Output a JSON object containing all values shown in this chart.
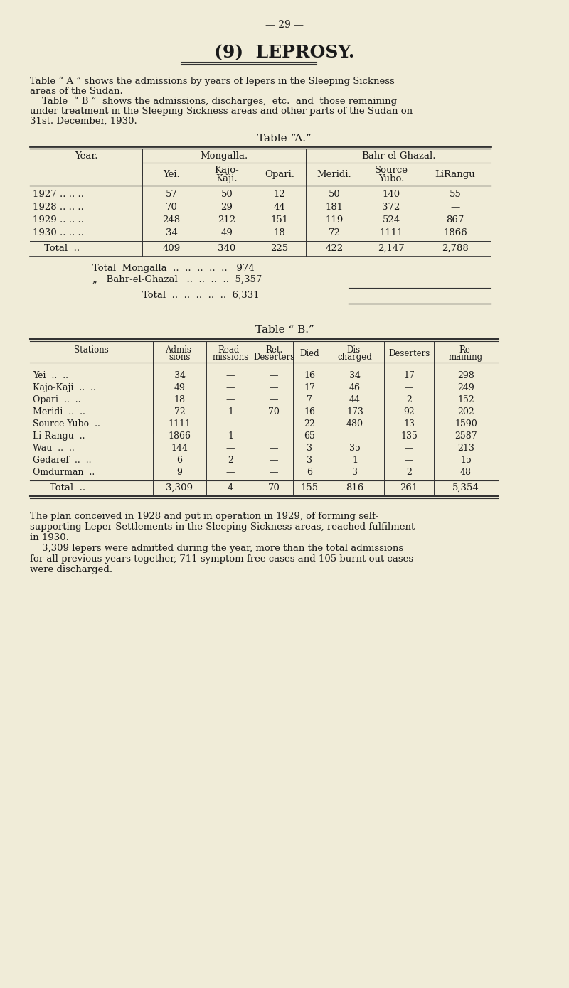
{
  "bg_color": "#f0ecd8",
  "page_number": "— 29 —",
  "title": "(9)  LEPROSY.",
  "intro_text": [
    "Table “ A ” shows the admissions by years of lepers in the Sleeping Sickness",
    "areas of the Sudan.",
    "    Table  “ B ”  shows the admissions, discharges,  etc.  and  those remaining",
    "under treatment in the Sleeping Sickness areas and other parts of the Sudan on",
    "31st. December, 1930."
  ],
  "table_a_title": "Table “A.”",
  "table_a_header_row1": [
    "Year.",
    "Mongalla.",
    "",
    "",
    "Bahr-el-Ghazal.",
    "",
    ""
  ],
  "table_a_header_row2": [
    "",
    "Yei.",
    "Kajo-\nKaji.",
    "Opari.",
    "Meridi.",
    "Source\nYubo.",
    "LiRangu"
  ],
  "table_a_data": [
    [
      "1927 .. .. ..",
      "57",
      "50",
      "12",
      "50",
      "140",
      "55"
    ],
    [
      "1928 .. .. ..",
      "70",
      "29",
      "44",
      "181",
      "372",
      "—"
    ],
    [
      "1929 .. .. ..",
      "248",
      "212",
      "151",
      "119",
      "524",
      "867"
    ],
    [
      "1930 .. .. ..",
      "34",
      "49",
      "18",
      "72",
      "1111",
      "1866"
    ]
  ],
  "table_a_total_row": [
    "Total  ..",
    "409",
    "340",
    "225",
    "422",
    "2,147",
    "2,788"
  ],
  "table_a_subtotals": [
    "Total  Mongalla  ..  ..  ..  ..  ..   974",
    "„   Bahr-el-Ghazal   ..  ..  ..  ..  5,357"
  ],
  "table_a_grand_total": "Total  ..  ..  ..  ..  ..  6,331",
  "table_b_title": "Table “ B.”",
  "table_b_headers": [
    "Stations",
    "Admis-\nsions",
    "Read-\nmissions",
    "Ret.\nDeserters",
    "Died",
    "Dis-\ncharged",
    "Deserters",
    "Re-\nmaining"
  ],
  "table_b_data": [
    [
      "Yei  ..  ..",
      "34",
      "—",
      "—",
      "16",
      "34",
      "17",
      "298"
    ],
    [
      "Kajo-Kaji  ..  ..",
      "49",
      "—",
      "—",
      "17",
      "46",
      "—",
      "249"
    ],
    [
      "Opari  ..  ..",
      "18",
      "—",
      "—",
      "7",
      "44",
      "2",
      "152"
    ],
    [
      "Meridi  ..  ..",
      "72",
      "1",
      "70",
      "16",
      "173",
      "92",
      "202"
    ],
    [
      "Source Yubo  ..",
      "1111",
      "—",
      "—",
      "22",
      "480",
      "13",
      "1590"
    ],
    [
      "Li-Rangu  ..",
      "1866",
      "1",
      "—",
      "65",
      "—",
      "135",
      "2587"
    ],
    [
      "Wau  ..  ..",
      "144",
      "—",
      "—",
      "3",
      "35",
      "—",
      "213"
    ],
    [
      "Gedaref  ..  ..",
      "6",
      "2",
      "—",
      "3",
      "1",
      "—",
      "15"
    ],
    [
      "Omdurman  ..",
      "9",
      "—",
      "—",
      "6",
      "3",
      "2",
      "48"
    ]
  ],
  "table_b_total_row": [
    "Total  ..",
    "3,309",
    "4",
    "70",
    "155",
    "816",
    "261",
    "5,354"
  ],
  "footer_text": [
    "The plan conceived in 1928 and put in operation in 1929, of forming self-",
    "supporting Leper Settlements in the Sleeping Sickness areas, reached fulfilment",
    "in 1930.",
    "    3,309 lepers were admitted during the year, more than the total admissions",
    "for all previous years together, 711 symptom free cases and 105 burnt out cases",
    "were discharged."
  ]
}
